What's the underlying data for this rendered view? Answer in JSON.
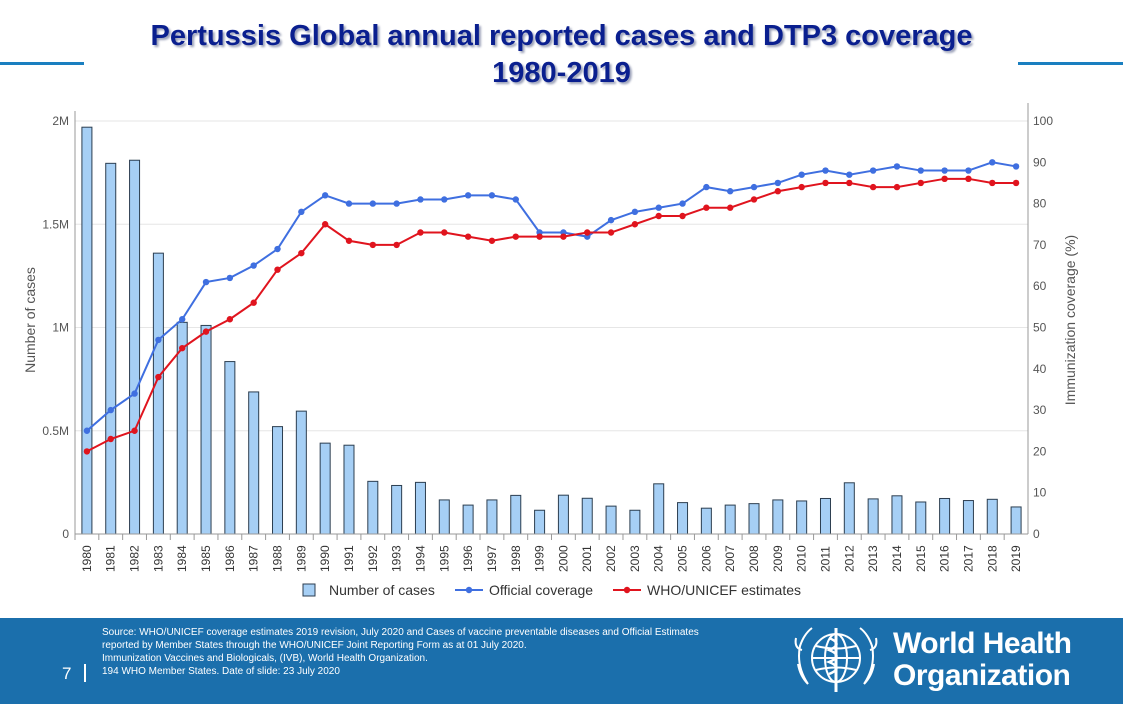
{
  "slide": {
    "title_line1": "Pertussis Global annual reported cases and DTP3 coverage",
    "title_line2": "1980-2019",
    "page_number": "7"
  },
  "footer": {
    "source_lines": [
      "Source: WHO/UNICEF   coverage estimates 2019 revision, July 2020 and  Cases of vaccine preventable diseases and Official Estimates",
      "reported by Member States through the WHO/UNICEF  Joint Reporting Form as at 01 July 2020.",
      "Immunization  Vaccines and Biologicals, (IVB), World Health  Organization.",
      "194 WHO Member States. Date of slide: 23 July 2020"
    ],
    "org_name_line1": "World Health",
    "org_name_line2": "Organization",
    "emblem_icon": "who-emblem-icon"
  },
  "colors": {
    "bars_fill": "#a6cff5",
    "bars_stroke": "#2c3e50",
    "official_line": "#3f6fe0",
    "who_unicef_line": "#e0141e",
    "title": "#0a1f8f",
    "footer_bg": "#1b6fac"
  },
  "chart_data": {
    "type": "bar+line",
    "title": "Pertussis Global annual reported cases and DTP3 coverage 1980-2019",
    "categories": [
      "1980",
      "1981",
      "1982",
      "1983",
      "1984",
      "1985",
      "1986",
      "1987",
      "1988",
      "1989",
      "1990",
      "1991",
      "1992",
      "1993",
      "1994",
      "1995",
      "1996",
      "1997",
      "1998",
      "1999",
      "2000",
      "2001",
      "2002",
      "2003",
      "2004",
      "2005",
      "2006",
      "2007",
      "2008",
      "2009",
      "2010",
      "2011",
      "2012",
      "2013",
      "2014",
      "2015",
      "2016",
      "2017",
      "2018",
      "2019"
    ],
    "y_left": {
      "label": "Number of cases",
      "range": [
        0,
        2000000
      ],
      "ticks": [
        0,
        500000,
        1000000,
        1500000,
        2000000
      ],
      "tick_labels": [
        "0",
        "0.5M",
        "1M",
        "1.5M",
        "2M"
      ]
    },
    "y_right": {
      "label": "Immunization coverage (%)",
      "range": [
        0,
        100
      ],
      "ticks": [
        0,
        10,
        20,
        30,
        40,
        50,
        60,
        70,
        80,
        90,
        100
      ],
      "tick_labels": [
        "0",
        "10",
        "20",
        "30",
        "40",
        "50",
        "60",
        "70",
        "80",
        "90",
        "100"
      ]
    },
    "grid": true,
    "legend_position": "bottom",
    "series": [
      {
        "name": "Number of cases",
        "type": "bar",
        "axis": "left",
        "values": [
          1970000,
          1795000,
          1810000,
          1360000,
          1025000,
          1010000,
          835000,
          688000,
          520000,
          595000,
          440000,
          430000,
          255000,
          235000,
          250000,
          165000,
          140000,
          165000,
          187000,
          115000,
          188000,
          173000,
          135000,
          115000,
          243000,
          152000,
          125000,
          140000,
          147000,
          165000,
          160000,
          172000,
          248000,
          170000,
          185000,
          155000,
          172000,
          162000,
          168000,
          131000
        ]
      },
      {
        "name": "Official coverage",
        "type": "line",
        "axis": "right",
        "values": [
          25,
          30,
          34,
          47,
          52,
          61,
          62,
          65,
          69,
          78,
          82,
          80,
          80,
          80,
          81,
          81,
          82,
          82,
          81,
          73,
          73,
          72,
          76,
          78,
          79,
          80,
          84,
          83,
          84,
          85,
          87,
          88,
          87,
          88,
          89,
          88,
          88,
          88,
          90,
          89
        ]
      },
      {
        "name": "WHO/UNICEF estimates",
        "type": "line",
        "axis": "right",
        "values": [
          20,
          23,
          25,
          38,
          45,
          49,
          52,
          56,
          64,
          68,
          75,
          71,
          70,
          70,
          73,
          73,
          72,
          71,
          72,
          72,
          72,
          73,
          73,
          75,
          77,
          77,
          79,
          79,
          81,
          83,
          84,
          85,
          85,
          84,
          84,
          85,
          86,
          86,
          85,
          85
        ]
      }
    ]
  }
}
